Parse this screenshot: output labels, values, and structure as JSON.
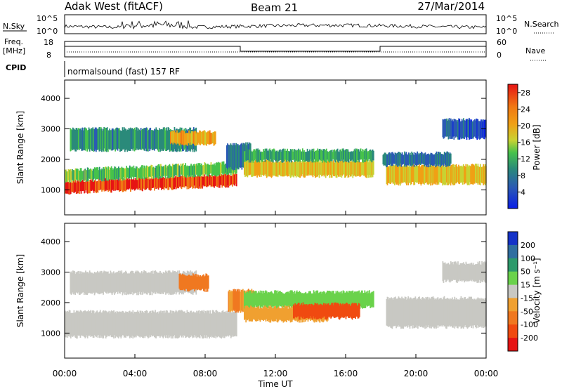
{
  "header": {
    "title": "Adak West (fitACF)",
    "beam": "Beam 21",
    "date": "27/Mar/2014"
  },
  "panels": {
    "nsky_label": "N.Sky",
    "nsky_ticks": [
      "10^5",
      "10^0"
    ],
    "nsearch_label": "N.Search",
    "freq_label": "Freq.",
    "freq_unit": "[MHz]",
    "freq_ticks": [
      "18",
      "8"
    ],
    "nave_label": "Nave",
    "nave_ticks": [
      "60",
      "0"
    ],
    "cpid_label": "CPID",
    "cpid_text": "normalsound (fast) 157 RF"
  },
  "chart_data": [
    {
      "type": "heatmap",
      "name": "power",
      "ylabel": "Slant Range [km]",
      "yticks": [
        1000,
        2000,
        3000,
        4000
      ],
      "ylim": [
        180,
        4600
      ],
      "xlim_hours": [
        0,
        24
      ],
      "colorbar_label": "Power [dB]",
      "colorbar_ticks": [
        "4",
        "8",
        "12",
        "16",
        "20",
        "24",
        "28"
      ],
      "colorbar_colors": [
        "#0a1ee6",
        "#2b5ab4",
        "#2a8a7a",
        "#46c24b",
        "#c8d232",
        "#f0a015",
        "#f07814",
        "#e61414"
      ],
      "bands": [
        {
          "t0": 0.0,
          "t1": 9.8,
          "r0": 900,
          "r1": 1280,
          "level": 28
        },
        {
          "t0": 0.0,
          "t1": 9.8,
          "r0": 1280,
          "r1": 1650,
          "level": 14
        },
        {
          "t0": 0.3,
          "t1": 7.5,
          "r0": 2300,
          "r1": 3000,
          "level": 10
        },
        {
          "t0": 6.0,
          "t1": 8.6,
          "r0": 2500,
          "r1": 2900,
          "level": 22
        },
        {
          "t0": 9.2,
          "t1": 10.6,
          "r0": 1700,
          "r1": 2500,
          "level": 8
        },
        {
          "t0": 10.2,
          "t1": 17.6,
          "r0": 1450,
          "r1": 1950,
          "level": 20
        },
        {
          "t0": 10.2,
          "t1": 17.6,
          "r0": 1950,
          "r1": 2300,
          "level": 12
        },
        {
          "t0": 18.3,
          "t1": 24.0,
          "r0": 1200,
          "r1": 1800,
          "level": 20
        },
        {
          "t0": 18.1,
          "t1": 22.0,
          "r0": 1800,
          "r1": 2200,
          "level": 8
        },
        {
          "t0": 21.5,
          "t1": 24.0,
          "r0": 2700,
          "r1": 3300,
          "level": 6
        }
      ]
    },
    {
      "type": "heatmap",
      "name": "velocity",
      "ylabel": "Slant Range [km]",
      "yticks": [
        1000,
        2000,
        3000,
        4000
      ],
      "ylim": [
        180,
        4600
      ],
      "xlim_hours": [
        0,
        24
      ],
      "xticks": [
        "00:00",
        "04:00",
        "08:00",
        "12:00",
        "16:00",
        "20:00",
        "00:00"
      ],
      "xlabel": "Time UT",
      "colorbar_label": "Velocity [m s⁻¹]",
      "colorbar_ticks": [
        "200",
        "100",
        "50",
        "15",
        "-15",
        "-50",
        "-100",
        "-200"
      ],
      "colorbar_colors": [
        "#1432c8",
        "#2f6ea0",
        "#2d9a6b",
        "#6ad24b",
        "#c8c8c3",
        "#f0a030",
        "#f07820",
        "#f04a10",
        "#e61414"
      ],
      "bands": [
        {
          "t0": 0.0,
          "t1": 9.8,
          "r0": 880,
          "r1": 1700,
          "level": 0
        },
        {
          "t0": 0.3,
          "t1": 7.5,
          "r0": 2300,
          "r1": 3000,
          "level": 0
        },
        {
          "t0": 6.5,
          "t1": 8.2,
          "r0": 2400,
          "r1": 2900,
          "level": -60
        },
        {
          "t0": 9.3,
          "t1": 10.8,
          "r0": 1700,
          "r1": 2400,
          "level": -50
        },
        {
          "t0": 10.2,
          "t1": 17.6,
          "r0": 1850,
          "r1": 2350,
          "level": 40
        },
        {
          "t0": 10.2,
          "t1": 15.0,
          "r0": 1400,
          "r1": 1850,
          "level": -40
        },
        {
          "t0": 13.0,
          "t1": 16.8,
          "r0": 1500,
          "r1": 1950,
          "level": -180
        },
        {
          "t0": 18.3,
          "t1": 24.0,
          "r0": 1200,
          "r1": 2150,
          "level": 0
        },
        {
          "t0": 21.5,
          "t1": 24.0,
          "r0": 2700,
          "r1": 3300,
          "level": 0
        }
      ]
    }
  ]
}
